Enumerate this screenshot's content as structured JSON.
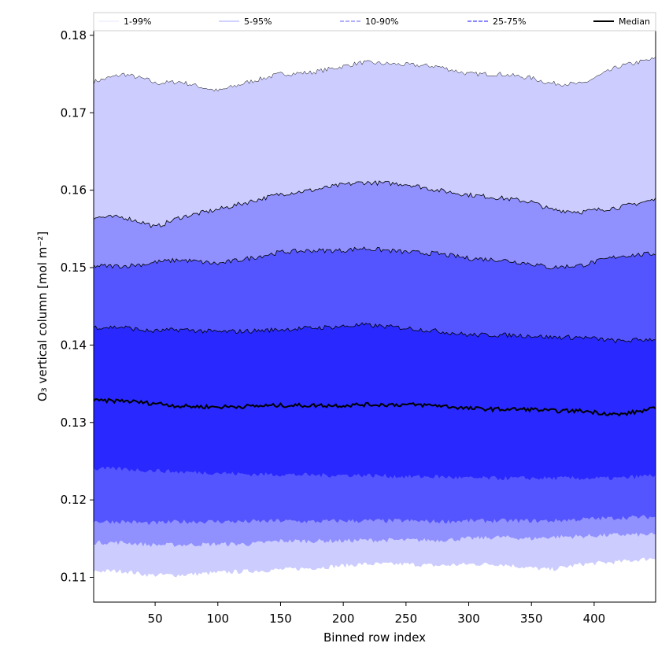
{
  "chart_data": {
    "type": "area",
    "title": "",
    "xlabel": "Binned row index",
    "ylabel": "O₃ vertical column [mol m⁻²]",
    "xlim": [
      1,
      449
    ],
    "ylim": [
      0.1068,
      0.1806
    ],
    "x_ticks": [
      50,
      100,
      150,
      200,
      250,
      300,
      350,
      400
    ],
    "y_ticks": [
      0.11,
      0.12,
      0.13,
      0.14,
      0.15,
      0.16,
      0.17,
      0.18
    ],
    "x_tick_labels": [
      "50",
      "100",
      "150",
      "200",
      "250",
      "300",
      "350",
      "400"
    ],
    "y_tick_labels": [
      "0.11",
      "0.12",
      "0.13",
      "0.14",
      "0.15",
      "0.16",
      "0.17",
      "0.18"
    ],
    "grid": false,
    "legend_position": "top",
    "legend": [
      {
        "label": "1-99%",
        "color": "#ececff",
        "style": "solid"
      },
      {
        "label": "5-95%",
        "color": "#b8b8ff",
        "style": "solid"
      },
      {
        "label": "10-90%",
        "color": "#8080ff",
        "style": "dashed"
      },
      {
        "label": "25-75%",
        "color": "#4040ff",
        "style": "dashed"
      },
      {
        "label": "Median",
        "color": "#000000",
        "style": "solid"
      }
    ],
    "x": [
      1,
      25,
      45,
      50,
      70,
      100,
      125,
      150,
      175,
      200,
      215,
      250,
      275,
      300,
      325,
      350,
      365,
      390,
      420,
      449
    ],
    "bands": [
      {
        "name": "1-99%",
        "color": "#ccccff",
        "upper": [
          0.174,
          0.175,
          0.1742,
          0.1738,
          0.174,
          0.1728,
          0.174,
          0.175,
          0.1752,
          0.176,
          0.1765,
          0.1762,
          0.176,
          0.175,
          0.175,
          0.1745,
          0.1738,
          0.1737,
          0.176,
          0.177
        ],
        "lower": [
          0.1108,
          0.1108,
          0.1103,
          0.1103,
          0.1103,
          0.1106,
          0.1108,
          0.111,
          0.1112,
          0.1115,
          0.1117,
          0.1117,
          0.1115,
          0.1117,
          0.1117,
          0.1112,
          0.111,
          0.1117,
          0.112,
          0.1125
        ]
      },
      {
        "name": "5-95%",
        "color": "#9090ff",
        "upper": [
          0.1565,
          0.1565,
          0.1556,
          0.1552,
          0.1565,
          0.1575,
          0.1585,
          0.1595,
          0.16,
          0.1607,
          0.161,
          0.1608,
          0.16,
          0.1594,
          0.159,
          0.1585,
          0.1575,
          0.1572,
          0.1578,
          0.1588
        ],
        "lower": [
          0.1145,
          0.1145,
          0.1142,
          0.1142,
          0.1142,
          0.1143,
          0.1143,
          0.1147,
          0.1147,
          0.1147,
          0.1148,
          0.1148,
          0.1148,
          0.115,
          0.1152,
          0.115,
          0.1152,
          0.1153,
          0.1155,
          0.1155
        ]
      },
      {
        "name": "10-90%",
        "color": "#5555ff",
        "upper": [
          0.1502,
          0.1502,
          0.1505,
          0.1507,
          0.151,
          0.1505,
          0.1512,
          0.152,
          0.1522,
          0.1522,
          0.1525,
          0.152,
          0.1518,
          0.1512,
          0.151,
          0.1505,
          0.15,
          0.1503,
          0.1515,
          0.1518
        ],
        "lower": [
          0.1172,
          0.1172,
          0.117,
          0.117,
          0.1172,
          0.1172,
          0.1172,
          0.1173,
          0.1172,
          0.1173,
          0.1173,
          0.1173,
          0.1172,
          0.1173,
          0.1173,
          0.1173,
          0.1173,
          0.1175,
          0.1177,
          0.1178
        ]
      },
      {
        "name": "25-75%",
        "color": "#2828ff",
        "upper": [
          0.1423,
          0.1423,
          0.1418,
          0.1418,
          0.142,
          0.1417,
          0.1418,
          0.142,
          0.1422,
          0.1424,
          0.1426,
          0.1422,
          0.1418,
          0.1413,
          0.1413,
          0.1412,
          0.141,
          0.141,
          0.1405,
          0.1408
        ],
        "lower": [
          0.124,
          0.124,
          0.1238,
          0.1238,
          0.1236,
          0.1235,
          0.1233,
          0.1233,
          0.1232,
          0.1232,
          0.1232,
          0.123,
          0.123,
          0.1228,
          0.1228,
          0.1228,
          0.1228,
          0.1228,
          0.1228,
          0.1232
        ]
      }
    ],
    "median": [
      0.1328,
      0.1328,
      0.1325,
      0.1325,
      0.1321,
      0.132,
      0.1321,
      0.1322,
      0.1322,
      0.1322,
      0.1323,
      0.1323,
      0.1322,
      0.1318,
      0.1317,
      0.1317,
      0.1315,
      0.1315,
      0.131,
      0.1318
    ]
  }
}
